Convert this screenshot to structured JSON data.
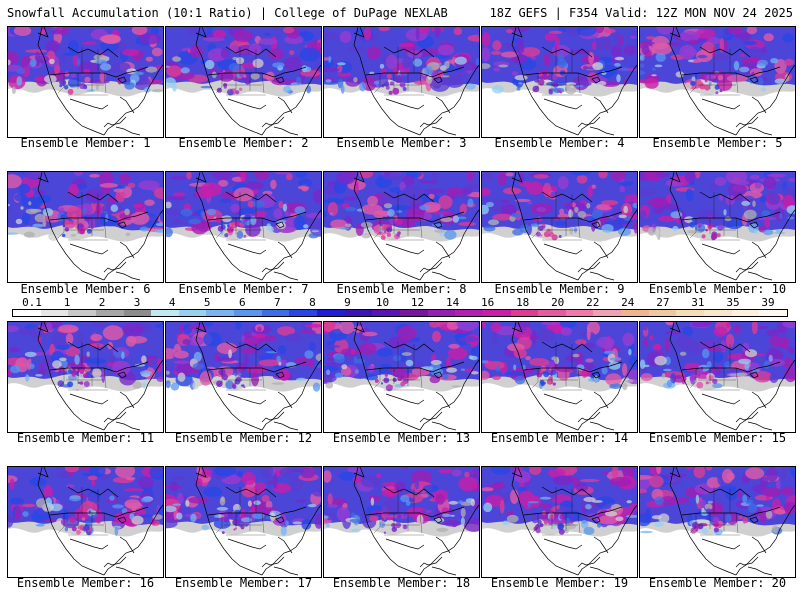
{
  "header": {
    "title": "Snowfall Accumulation (10:1 Ratio) | College of DuPage NEXLAB",
    "run_info": "18Z GEFS | F354 Valid: 12Z MON NOV 24 2025"
  },
  "panels": [
    {
      "label": "Ensemble Member: 1"
    },
    {
      "label": "Ensemble Member: 2"
    },
    {
      "label": "Ensemble Member: 3"
    },
    {
      "label": "Ensemble Member: 4"
    },
    {
      "label": "Ensemble Member: 5"
    },
    {
      "label": "Ensemble Member: 6"
    },
    {
      "label": "Ensemble Member: 7"
    },
    {
      "label": "Ensemble Member: 8"
    },
    {
      "label": "Ensemble Member: 9"
    },
    {
      "label": "Ensemble Member: 10"
    },
    {
      "label": "Ensemble Member: 11"
    },
    {
      "label": "Ensemble Member: 12"
    },
    {
      "label": "Ensemble Member: 13"
    },
    {
      "label": "Ensemble Member: 14"
    },
    {
      "label": "Ensemble Member: 15"
    },
    {
      "label": "Ensemble Member: 16"
    },
    {
      "label": "Ensemble Member: 17"
    },
    {
      "label": "Ensemble Member: 18"
    },
    {
      "label": "Ensemble Member: 19"
    },
    {
      "label": "Ensemble Member: 20"
    }
  ],
  "color_scale": {
    "labels": [
      "0.1",
      "1",
      "2",
      "3",
      "4",
      "5",
      "6",
      "7",
      "8",
      "9",
      "10",
      "12",
      "14",
      "16",
      "18",
      "20",
      "22",
      "24",
      "27",
      "31",
      "35",
      "39"
    ],
    "colors": [
      "#ffffff",
      "#e6e6e6",
      "#c8c8c8",
      "#a6a6a6",
      "#8c8c8c",
      "#bfe8f0",
      "#96d2f0",
      "#78b4f0",
      "#5a96f0",
      "#3c6ee6",
      "#2846e6",
      "#1e1ed2",
      "#3c14b4",
      "#5a14b4",
      "#7814a0",
      "#961eb4",
      "#b41eb4",
      "#c81eaa",
      "#dc3c96",
      "#e65aa0",
      "#f078aa",
      "#f0a0b4",
      "#f0b48c",
      "#f0c8a0",
      "#f5dcb4",
      "#fae6c8",
      "#fff0dc",
      "#fff8ee"
    ]
  }
}
